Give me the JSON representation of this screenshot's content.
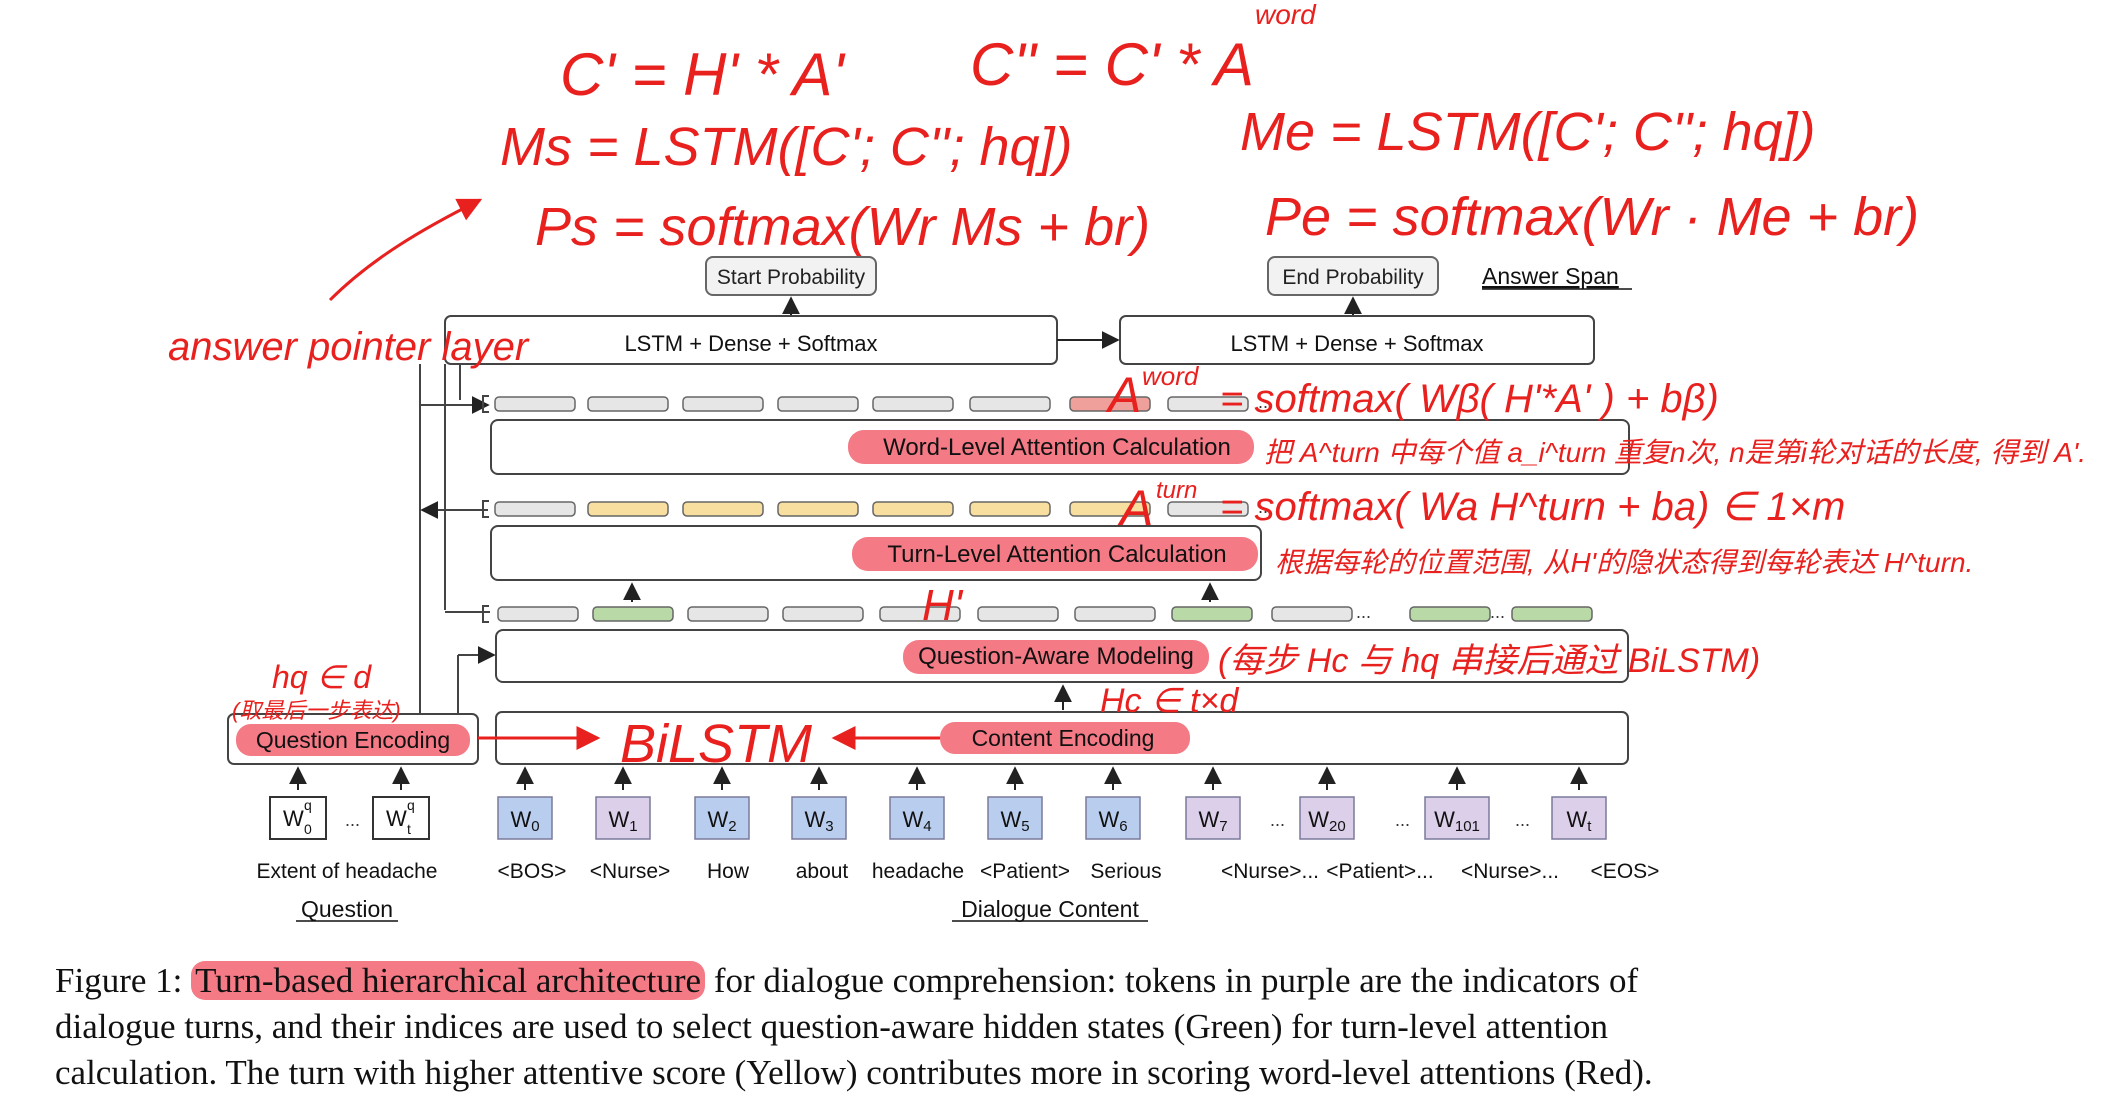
{
  "figure": {
    "boxes": {
      "start_probability": "Start Probability",
      "end_probability": "End Probability",
      "answer_span": "Answer Span",
      "lstm_left": "LSTM + Dense + Softmax",
      "lstm_right": "LSTM + Dense + Softmax",
      "word_level": "Word-Level Attention Calculation",
      "turn_level": "Turn-Level Attention Calculation",
      "question_aware": "Question-Aware Modeling",
      "question_encoding": "Question Encoding",
      "content_encoding": "Content Encoding"
    },
    "question_tokens": [
      "w0q",
      "wtq"
    ],
    "question_tokens_main": [
      "W",
      "W"
    ],
    "question_tokens_sub": [
      "0",
      "t"
    ],
    "question_tokens_sup": [
      "q",
      "q"
    ],
    "ellipsis": "...",
    "dialogue_tokens": [
      {
        "main": "W",
        "sub": "0",
        "color": "blue"
      },
      {
        "main": "W",
        "sub": "1",
        "color": "purple"
      },
      {
        "main": "W",
        "sub": "2",
        "color": "blue"
      },
      {
        "main": "W",
        "sub": "3",
        "color": "blue"
      },
      {
        "main": "W",
        "sub": "4",
        "color": "blue"
      },
      {
        "main": "W",
        "sub": "5",
        "color": "blue"
      },
      {
        "main": "W",
        "sub": "6",
        "color": "blue"
      },
      {
        "main": "W",
        "sub": "7",
        "color": "purple"
      },
      {
        "main": "W",
        "sub": "20",
        "color": "purple"
      },
      {
        "main": "W",
        "sub": "101",
        "color": "purple"
      },
      {
        "main": "W",
        "sub": "t",
        "color": "purple"
      }
    ],
    "question_text": "Extent of headache",
    "question_label": "Question",
    "dialogue_words": [
      "<BOS>",
      "<Nurse>",
      "How",
      "about",
      "headache",
      "<Patient>",
      "Serious",
      "<Nurse>...",
      "<Patient>...",
      "<Nurse>...",
      "<EOS>"
    ],
    "dialogue_label": "Dialogue Content",
    "word_row_states": [
      "gray",
      "gray",
      "gray",
      "gray",
      "gray",
      "gray",
      "red",
      "gray"
    ],
    "turn_row_states": [
      "gray",
      "yellow",
      "yellow",
      "yellow",
      "yellow",
      "yellow",
      "yellow",
      "gray"
    ],
    "hidden_row_states": [
      "gray",
      "green",
      "gray",
      "gray",
      "gray",
      "gray",
      "gray",
      "green",
      "gray",
      "green",
      "green"
    ]
  },
  "annotations": {
    "eq1": "C' = H' * A'",
    "eq2": "C'' = C' * A",
    "eq2_sup": "word",
    "eq3": "Ms = LSTM([C'; C''; hq])",
    "eq4": "Me = LSTM([C'; C''; hq])",
    "eq5": "Ps = softmax(Wr Ms + br)",
    "eq6": "Pe = softmax(Wr · Me + br)",
    "answer_pointer": "answer pointer layer",
    "a_word": "A",
    "a_word_sup": "word",
    "a_word_eq": "= softmax( Wβ( H'*A' ) + bβ)",
    "a_turn_note": "把 A^turn 中每个值 a_i^turn 重复n次, n是第i轮对话的长度, 得到 A'.",
    "a_turn": "A",
    "a_turn_sup": "turn",
    "a_turn_eq": "= softmax( Wa H^turn + ba) ∈ 1×m",
    "h_turn_note": "根据每轮的位置范围, 从H'的隐状态得到每轮表达 H^turn.",
    "h_prime": "H'",
    "qa_note": "(每步 Hc 与 hq 串接后通过 BiLSTM)",
    "hc": "Hc ∈ t×d",
    "hq": "hq ∈ d",
    "hq_note": "(取最后一步表达)",
    "bilstm": "BiLSTM"
  },
  "caption": {
    "prefix": "Figure 1: ",
    "highlight": "Turn-based hierarchical architecture",
    "line1_rest": " for dialogue comprehension: tokens in purple are the indicators of",
    "line2": "dialogue turns, and their indices are used to select question-aware hidden states (Green) for turn-level attention",
    "line3": "calculation. The turn with higher attentive score (Yellow) contributes more in scoring word-level attentions (Red)."
  },
  "colors": {
    "ink_red": "#e8201e",
    "highlight": "#f47a86",
    "blue_token": "#b9cdee",
    "purple_token": "#dccfea",
    "green": "#b9d9a7",
    "yellow": "#f8dfa0",
    "red_state": "#f0a09a",
    "gray_state": "#e6e6e6"
  }
}
